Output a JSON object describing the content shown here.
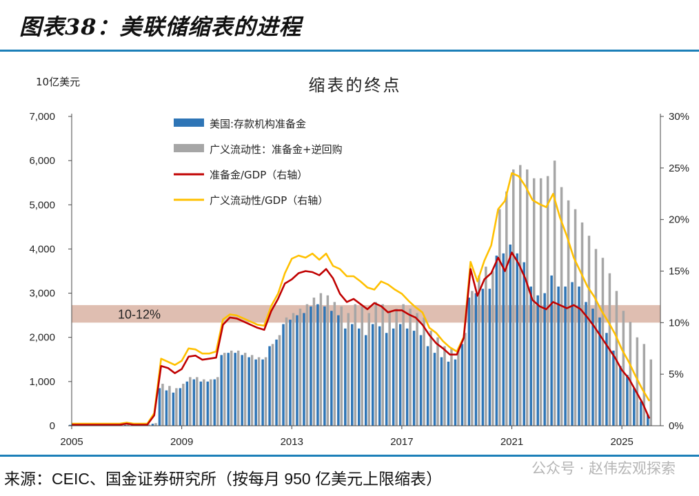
{
  "header": {
    "title": "图表38：美联储缩表的进程"
  },
  "footer": {
    "source": "来源：CEIC、国金证券研究所（按每月 950 亿美元上限缩表）",
    "watermark": "公众号 · 赵伟宏观探索"
  },
  "colors": {
    "accent": "#1b7fb8",
    "reserves": "#2e75b6",
    "liquidity": "#a6a6a6",
    "reserves_gdp": "#c00000",
    "liquidity_gdp": "#ffc000",
    "band": "#d9b3a3"
  },
  "chart_data": {
    "type": "bar",
    "title": "缩表的终点",
    "ylabel": "10亿美元",
    "ylim": [
      0,
      7000
    ],
    "y2lim": [
      0,
      30
    ],
    "xlim": [
      2005,
      2026.4
    ],
    "y_ticks": [
      "0",
      "1,000",
      "2,000",
      "3,000",
      "4,000",
      "5,000",
      "6,000",
      "7,000"
    ],
    "y_tick_values": [
      0,
      1000,
      2000,
      3000,
      4000,
      5000,
      6000,
      7000
    ],
    "y2_ticks": [
      "0%",
      "5%",
      "10%",
      "15%",
      "20%",
      "25%",
      "30%"
    ],
    "y2_tick_values": [
      0,
      5,
      10,
      15,
      20,
      25,
      30
    ],
    "x_ticks": [
      "2005",
      "2009",
      "2013",
      "2017",
      "2021",
      "2025"
    ],
    "x_tick_values": [
      2005,
      2009,
      2013,
      2017,
      2021,
      2025
    ],
    "band": {
      "label": "10-12%",
      "from": 10,
      "to": 11.7
    },
    "x": [
      2005.0,
      2005.25,
      2005.5,
      2005.75,
      2006.0,
      2006.25,
      2006.5,
      2006.75,
      2007.0,
      2007.25,
      2007.5,
      2007.75,
      2008.0,
      2008.25,
      2008.5,
      2008.75,
      2009.0,
      2009.25,
      2009.5,
      2009.75,
      2010.0,
      2010.25,
      2010.5,
      2010.75,
      2011.0,
      2011.25,
      2011.5,
      2011.75,
      2012.0,
      2012.25,
      2012.5,
      2012.75,
      2013.0,
      2013.25,
      2013.5,
      2013.75,
      2014.0,
      2014.25,
      2014.5,
      2014.75,
      2015.0,
      2015.25,
      2015.5,
      2015.75,
      2016.0,
      2016.25,
      2016.5,
      2016.75,
      2017.0,
      2017.25,
      2017.5,
      2017.75,
      2018.0,
      2018.25,
      2018.5,
      2018.75,
      2019.0,
      2019.25,
      2019.5,
      2019.75,
      2020.0,
      2020.25,
      2020.5,
      2020.75,
      2021.0,
      2021.25,
      2021.5,
      2021.75,
      2022.0,
      2022.25,
      2022.5,
      2022.75,
      2023.0,
      2023.25,
      2023.5,
      2023.75,
      2024.0,
      2024.25,
      2024.5,
      2024.75,
      2025.0,
      2025.25,
      2025.5,
      2025.75,
      2026.0
    ],
    "series": [
      {
        "name": "美国:存款机构准备金",
        "kind": "bar",
        "values": [
          20,
          15,
          15,
          14,
          15,
          15,
          15,
          14,
          18,
          15,
          15,
          20,
          45,
          850,
          800,
          750,
          850,
          1000,
          1050,
          1000,
          1000,
          1050,
          1600,
          1650,
          1650,
          1600,
          1550,
          1500,
          1500,
          1800,
          1950,
          2300,
          2400,
          2500,
          2550,
          2700,
          2750,
          2700,
          2600,
          2500,
          2200,
          2300,
          2200,
          2050,
          2300,
          2250,
          2100,
          2200,
          2300,
          2200,
          2150,
          2050,
          1800,
          1650,
          1550,
          1450,
          1500,
          1850,
          2900,
          3000,
          3100,
          3100,
          3850,
          3900,
          4100,
          3900,
          3700,
          3150,
          2950,
          3000,
          3400,
          3150,
          3150,
          3250,
          3150,
          2800,
          2650,
          2450,
          2100,
          1700,
          1350,
          1150,
          850,
          550,
          250
        ]
      },
      {
        "name": "广义流动性：准备金+逆回购",
        "kind": "bar",
        "values": [
          30,
          25,
          25,
          24,
          25,
          25,
          25,
          24,
          30,
          25,
          25,
          30,
          60,
          950,
          900,
          850,
          950,
          1100,
          1100,
          1050,
          1050,
          1100,
          1650,
          1700,
          1700,
          1650,
          1600,
          1550,
          1550,
          1850,
          2050,
          2450,
          2550,
          2650,
          2750,
          2900,
          3000,
          2950,
          2800,
          2700,
          2550,
          2750,
          2700,
          2550,
          2800,
          2750,
          2600,
          2650,
          2750,
          2650,
          2550,
          2450,
          2150,
          2000,
          1800,
          1750,
          1750,
          2100,
          3050,
          3400,
          3600,
          3500,
          4900,
          5300,
          5800,
          5900,
          5800,
          5600,
          5600,
          5650,
          6000,
          5400,
          5100,
          4900,
          4600,
          4300,
          4000,
          3800,
          3450,
          3050,
          2600,
          2350,
          2000,
          1850,
          1500
        ]
      },
      {
        "name": "准备金/GDP（右轴）",
        "kind": "line",
        "axis": "right",
        "values": [
          0.1,
          0.1,
          0.1,
          0.1,
          0.1,
          0.1,
          0.1,
          0.1,
          0.2,
          0.1,
          0.1,
          0.1,
          1.0,
          5.8,
          5.6,
          5.1,
          5.5,
          6.7,
          6.8,
          6.4,
          6.5,
          6.6,
          9.8,
          10.5,
          10.4,
          10.1,
          9.8,
          9.5,
          9.3,
          11.1,
          12.3,
          13.8,
          14.2,
          14.8,
          15.0,
          14.9,
          14.6,
          15.2,
          14.3,
          12.8,
          12.0,
          12.3,
          11.8,
          11.3,
          11.9,
          11.6,
          11.0,
          11.2,
          11.2,
          10.8,
          10.5,
          9.8,
          8.8,
          8.0,
          7.5,
          6.9,
          6.9,
          8.5,
          15.2,
          12.6,
          14.2,
          14.8,
          16.3,
          15.0,
          16.8,
          15.7,
          14.2,
          12.2,
          11.6,
          11.3,
          12.0,
          11.7,
          11.4,
          11.7,
          11.3,
          10.5,
          9.6,
          8.6,
          7.6,
          6.6,
          5.4,
          4.6,
          3.4,
          2.2,
          0.7
        ]
      },
      {
        "name": "广义流动性/GDP（右轴）",
        "kind": "line",
        "axis": "right",
        "values": [
          0.2,
          0.2,
          0.2,
          0.2,
          0.2,
          0.2,
          0.2,
          0.2,
          0.3,
          0.2,
          0.2,
          0.2,
          1.2,
          6.5,
          6.2,
          5.9,
          6.3,
          7.5,
          7.4,
          7.0,
          7.0,
          7.2,
          10.3,
          10.8,
          10.7,
          10.4,
          10.1,
          9.8,
          9.7,
          11.6,
          12.8,
          14.8,
          16.2,
          16.5,
          16.3,
          16.7,
          16.1,
          16.7,
          15.5,
          15.2,
          14.5,
          14.5,
          14.0,
          13.4,
          13.2,
          14.0,
          13.7,
          13.2,
          12.8,
          12.1,
          11.5,
          11.0,
          9.5,
          9.0,
          8.2,
          7.6,
          7.2,
          8.6,
          15.9,
          14.0,
          16.0,
          17.5,
          21.0,
          21.8,
          24.5,
          24.2,
          23.2,
          21.9,
          21.5,
          21.2,
          22.5,
          20.2,
          18.4,
          16.3,
          14.9,
          13.5,
          12.5,
          11.2,
          10.1,
          8.9,
          7.4,
          6.2,
          4.8,
          3.5,
          2.4
        ]
      }
    ]
  }
}
